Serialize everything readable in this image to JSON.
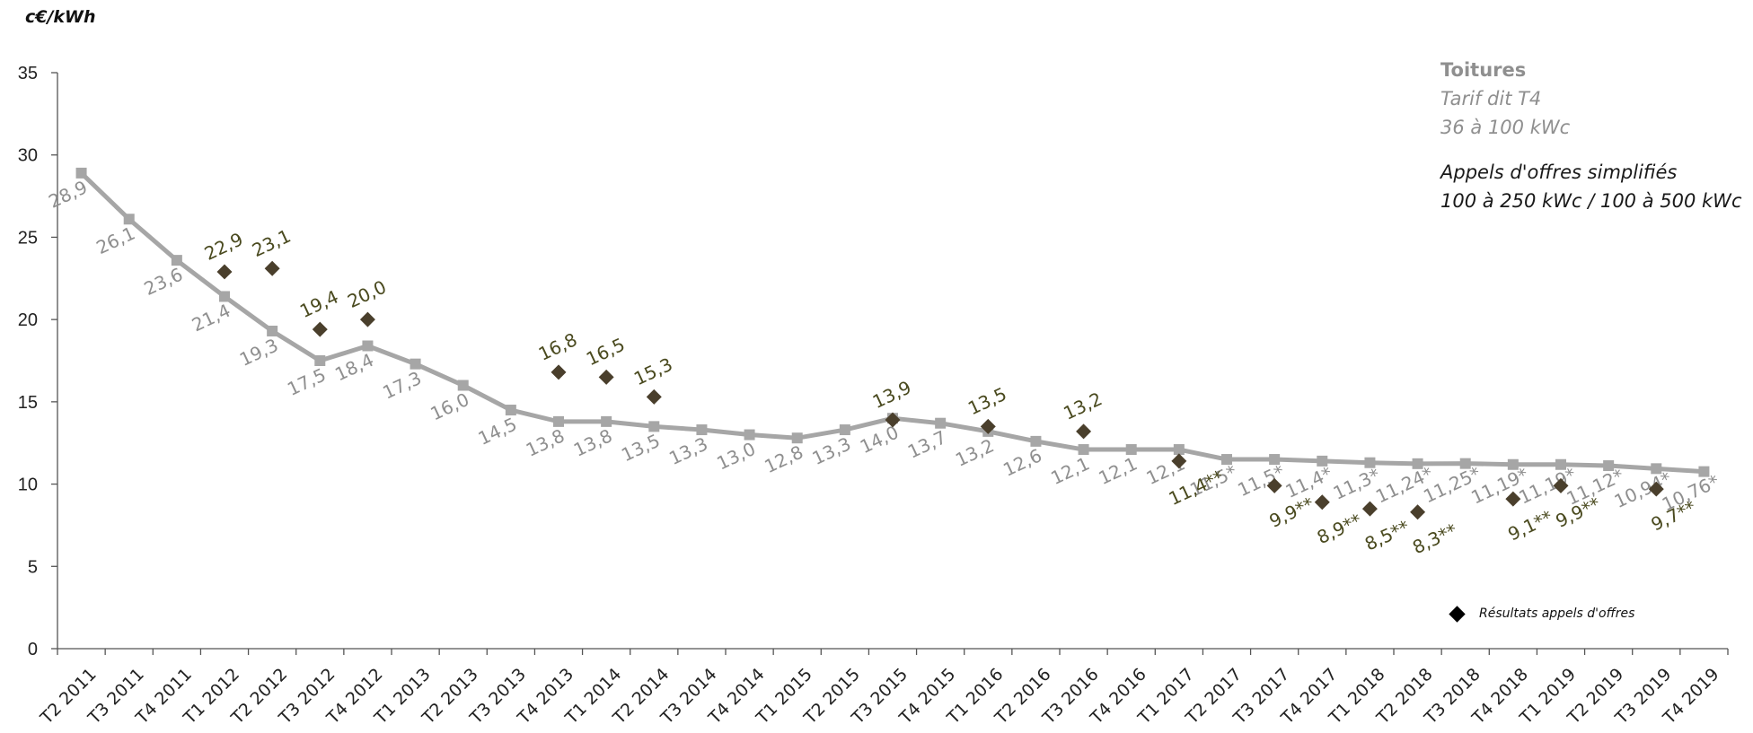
{
  "y_unit": "c€/kWh",
  "legend": {
    "tarif_title": "Toitures",
    "tarif_line1": "Tarif dit T4",
    "tarif_line2": "36 à 100 kWc",
    "ao_line1": "Appels d'offres simplifiés",
    "ao_line2": "100 à 250 kWc / 100 à 500 kWc",
    "marker_label": "Résultats appels d'offres"
  },
  "colors": {
    "tarif": "#a6a6a6",
    "tarif_label": "#8f8f8f",
    "ao": "#4a3f2c",
    "ao_label": "#4a4a1f"
  },
  "chart_data": {
    "type": "line",
    "categories": [
      "T2 2011",
      "T3 2011",
      "T4 2011",
      "T1 2012",
      "T2 2012",
      "T3 2012",
      "T4 2012",
      "T1 2013",
      "T2 2013",
      "T3 2013",
      "T4 2013",
      "T1 2014",
      "T2 2014",
      "T3 2014",
      "T4 2014",
      "T1 2015",
      "T2 2015",
      "T3 2015",
      "T4 2015",
      "T1 2016",
      "T2 2016",
      "T3 2016",
      "T4 2016",
      "T1 2017",
      "T2 2017",
      "T3 2017",
      "T4 2017",
      "T1 2018",
      "T2 2018",
      "T3 2018",
      "T4 2018",
      "T1 2019",
      "T2 2019",
      "T3 2019",
      "T4 2019"
    ],
    "ylim": [
      0,
      35
    ],
    "yticks": [
      0,
      5,
      10,
      15,
      20,
      25,
      30,
      35
    ],
    "series": [
      {
        "kind": "line",
        "values": [
          28.9,
          26.1,
          23.6,
          21.4,
          19.3,
          17.5,
          18.4,
          17.3,
          16.0,
          14.5,
          13.8,
          13.8,
          13.5,
          13.3,
          13.0,
          12.8,
          13.3,
          14.0,
          13.7,
          13.2,
          12.6,
          12.1,
          12.1,
          12.1,
          11.5,
          11.5,
          11.4,
          11.3,
          11.24,
          11.25,
          11.19,
          11.19,
          11.12,
          10.94,
          10.76
        ],
        "labels": [
          "28,9",
          "26,1",
          "23,6",
          "21,4",
          "19,3",
          "17,5",
          "18,4",
          "17,3",
          "16,0",
          "14,5",
          "13,8",
          "13,8",
          "13,5",
          "13,3",
          "13,0",
          "12,8",
          "13,3",
          "14,0",
          "13,7",
          "13,2",
          "12,6",
          "12,1",
          "12,1",
          "12,1",
          "11,5*",
          "11,5*",
          "11,4*",
          "11,3*",
          "11,24*",
          "11,25*",
          "11,19*",
          "11,19*",
          "11,12*",
          "10,94*",
          "10,76*"
        ]
      },
      {
        "kind": "scatter",
        "points": [
          {
            "x": "T1 2012",
            "y": 22.9,
            "label": "22,9"
          },
          {
            "x": "T2 2012",
            "y": 23.1,
            "label": "23,1"
          },
          {
            "x": "T3 2012",
            "y": 19.4,
            "label": "19,4"
          },
          {
            "x": "T4 2012",
            "y": 20.0,
            "label": "20,0"
          },
          {
            "x": "T4 2013",
            "y": 16.8,
            "label": "16,8"
          },
          {
            "x": "T1 2014",
            "y": 16.5,
            "label": "16,5"
          },
          {
            "x": "T2 2014",
            "y": 15.3,
            "label": "15,3"
          },
          {
            "x": "T3 2015",
            "y": 13.9,
            "label": "13,9"
          },
          {
            "x": "T1 2016",
            "y": 13.5,
            "label": "13,5"
          },
          {
            "x": "T3 2016",
            "y": 13.2,
            "label": "13,2"
          },
          {
            "x": "T1 2017",
            "y": 11.4,
            "label": "11,4**"
          },
          {
            "x": "T3 2017",
            "y": 9.9,
            "label": "9,9**"
          },
          {
            "x": "T4 2017",
            "y": 8.9,
            "label": "8,9**"
          },
          {
            "x": "T1 2018",
            "y": 8.5,
            "label": "8,5**"
          },
          {
            "x": "T2 2018",
            "y": 8.3,
            "label": "8,3**"
          },
          {
            "x": "T4 2018",
            "y": 9.1,
            "label": "9,1**"
          },
          {
            "x": "T1 2019",
            "y": 9.9,
            "label": "9,9**"
          },
          {
            "x": "T3 2019",
            "y": 9.7,
            "label": "9,7**"
          }
        ]
      }
    ]
  }
}
